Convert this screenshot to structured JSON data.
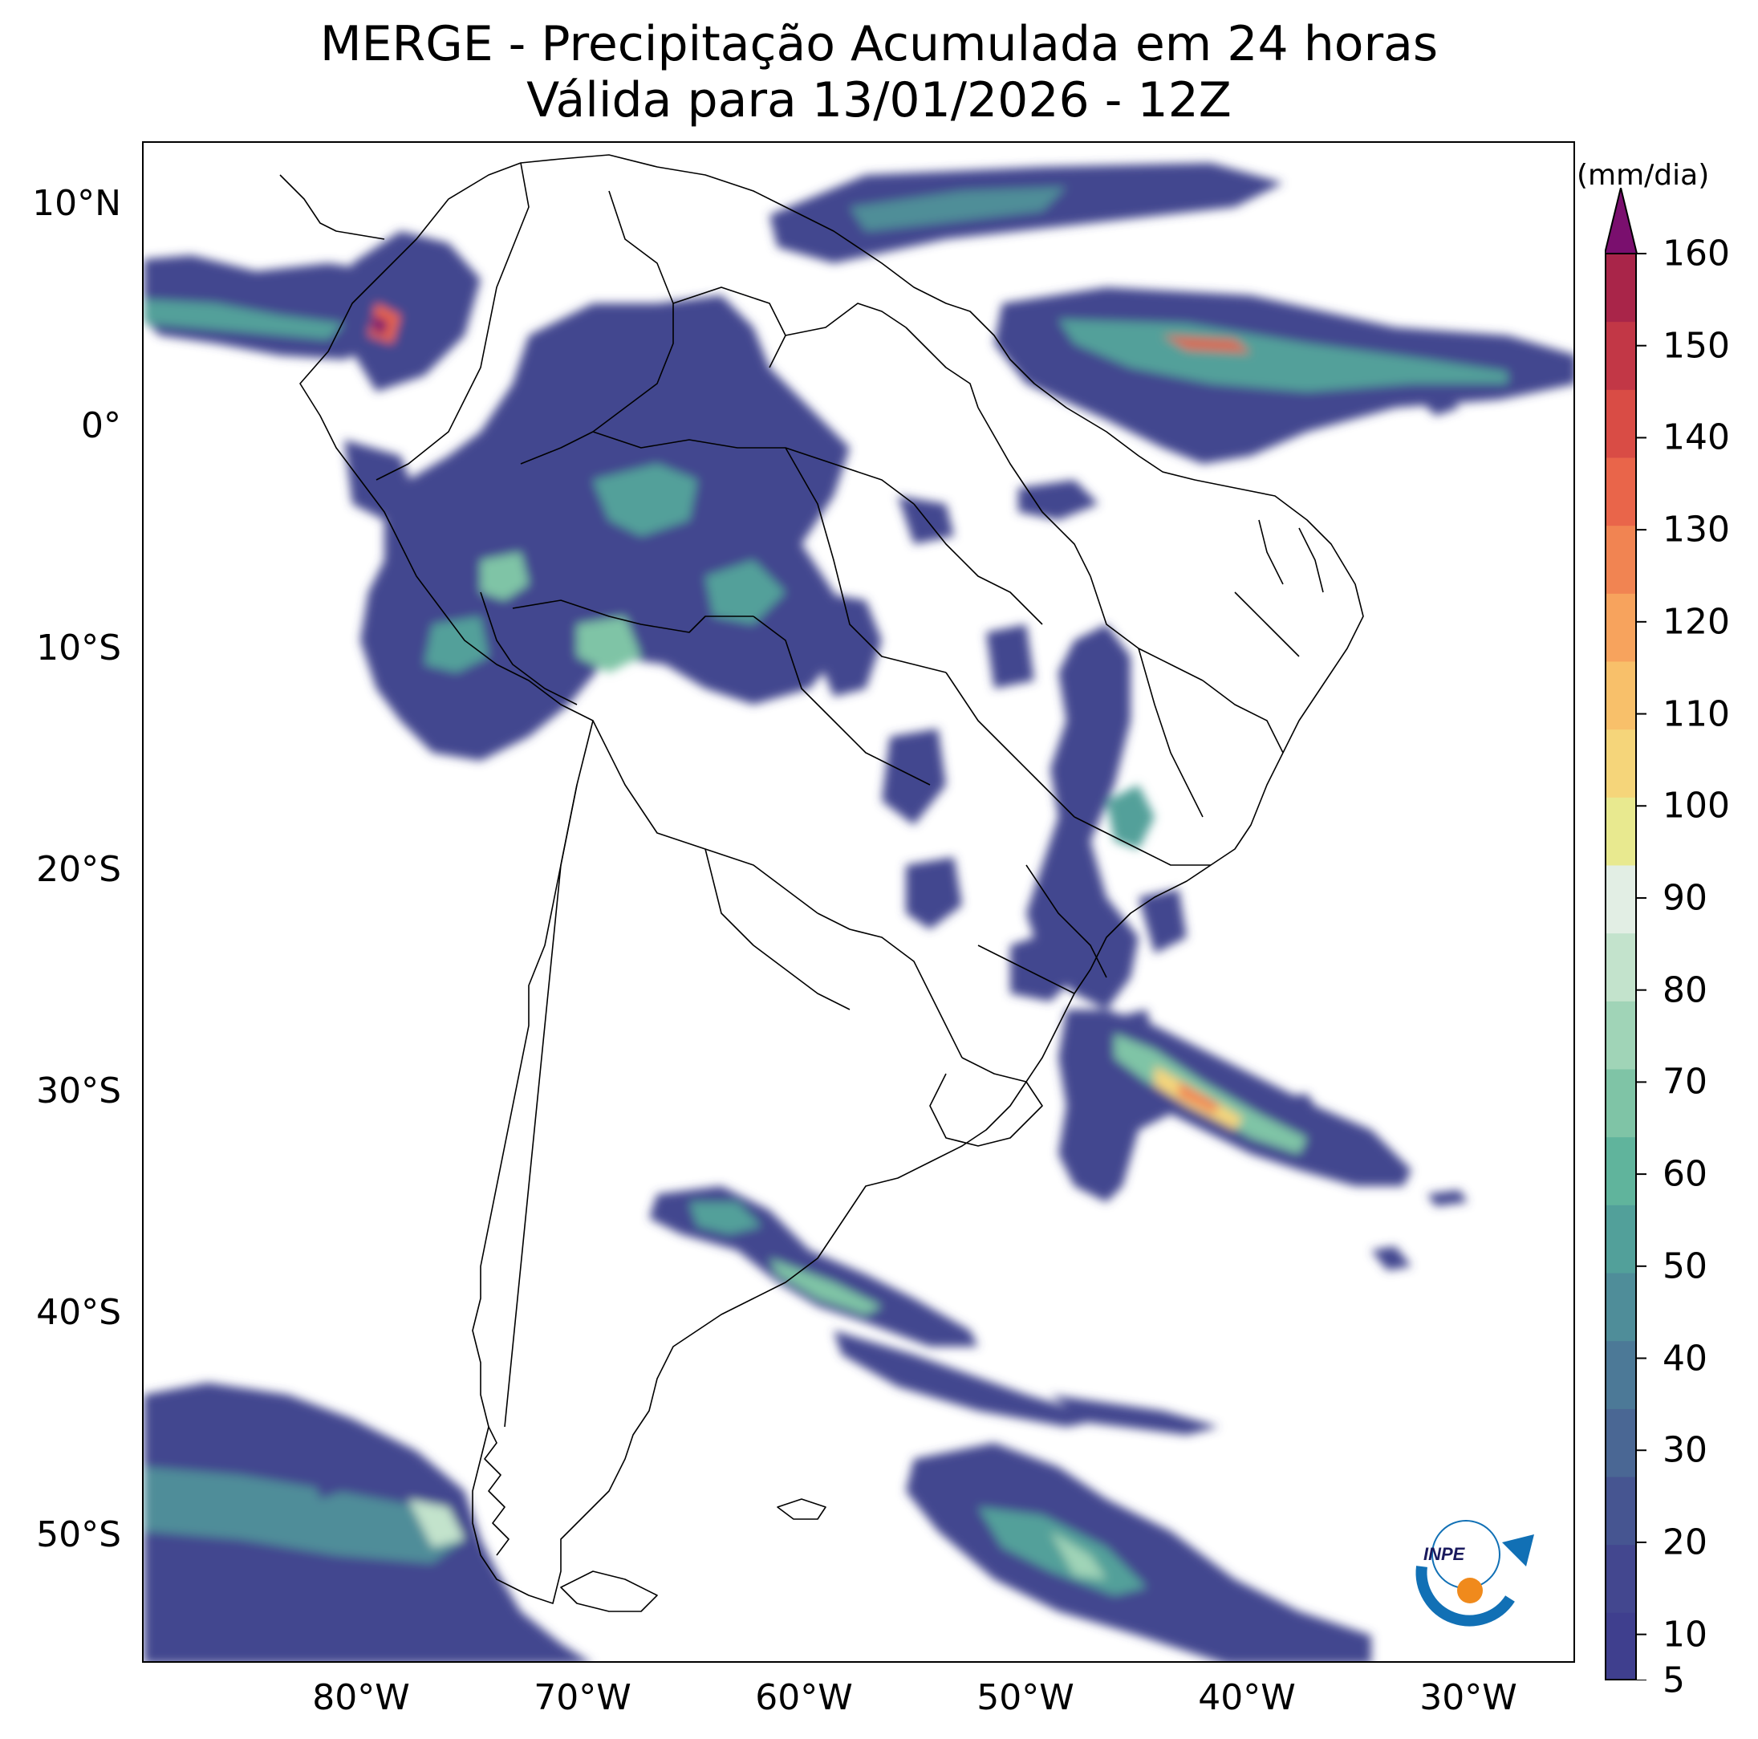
{
  "title_line1": "MERGE - Precipitação Acumulada em 24 horas",
  "title_line2": "Válida para 13/01/2026 - 12Z",
  "colorbar": {
    "unit": "(mm/dia)",
    "ticks": [
      "5",
      "10",
      "20",
      "30",
      "40",
      "50",
      "60",
      "70",
      "80",
      "90",
      "100",
      "110",
      "120",
      "130",
      "140",
      "150",
      "160"
    ],
    "colors": [
      "#3f3f8e",
      "#43478f",
      "#465591",
      "#4a6794",
      "#4c7997",
      "#4f8d99",
      "#52a09a",
      "#60b49c",
      "#7fc4a6",
      "#a0d4b7",
      "#c3e3cc",
      "#e2eee4",
      "#e8e98f",
      "#f5d57a",
      "#f8c06a",
      "#f7a35d",
      "#f18452",
      "#e9654a",
      "#d94c45",
      "#c23746",
      "#a92549",
      "#7a0f6e"
    ]
  },
  "axes": {
    "latitudes": [
      "10°N",
      "0°",
      "10°S",
      "20°S",
      "30°S",
      "40°S",
      "50°S"
    ],
    "longitudes": [
      "80°W",
      "70°W",
      "60°W",
      "50°W",
      "40°W",
      "30°W"
    ]
  },
  "logo": {
    "text": "INPE",
    "colors": {
      "blue": "#1170b5",
      "orange": "#f08a1c"
    }
  }
}
